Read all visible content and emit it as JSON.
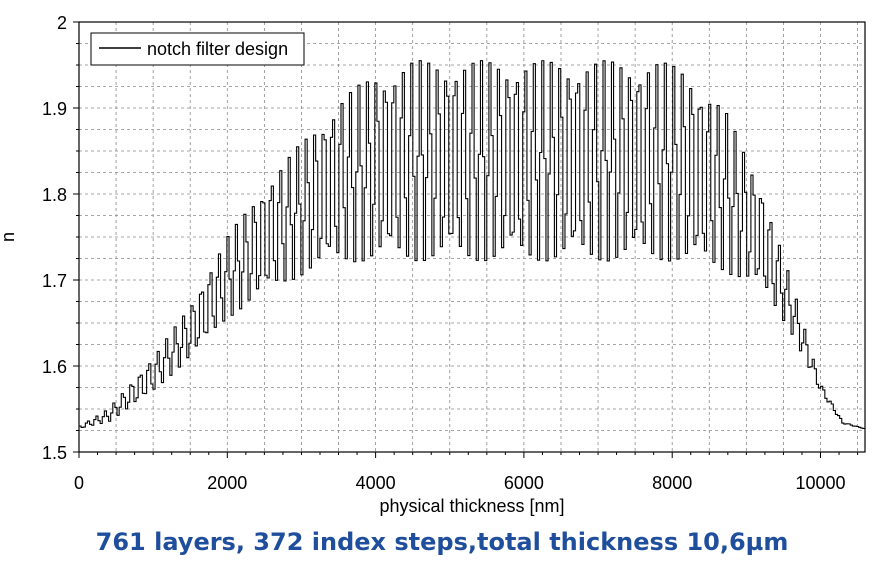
{
  "caption": "761 layers, 372 index steps,total thickness 10,6µm",
  "colors": {
    "line": "#000000",
    "grid": "#8a8a8a",
    "caption": "#1f4e9c"
  },
  "chart_data": {
    "type": "line",
    "title": "",
    "xlabel": "physical thickness [nm]",
    "ylabel": "n",
    "xlim": [
      0,
      10600
    ],
    "ylim": [
      1.5,
      2.0
    ],
    "xticks": [
      0,
      2000,
      4000,
      6000,
      8000,
      10000
    ],
    "xtick_labels": [
      "0",
      "2000",
      "4000",
      "6000",
      "8000",
      "10000"
    ],
    "yticks": [
      1.5,
      1.6,
      1.7,
      1.8,
      1.9,
      2.0
    ],
    "ytick_labels": [
      "1.5",
      "1.6",
      "1.7",
      "1.8",
      "1.9",
      "2"
    ],
    "grid": true,
    "legend": {
      "position": "top-left",
      "entries": [
        "notch filter design"
      ]
    },
    "series": [
      {
        "name": "notch filter design",
        "description_profile": {
          "baseline_n": 1.527,
          "envelope_max": [
            [
              0,
              1.53
            ],
            [
              400,
              1.55
            ],
            [
              1000,
              1.61
            ],
            [
              1500,
              1.67
            ],
            [
              2000,
              1.75
            ],
            [
              2500,
              1.81
            ],
            [
              3000,
              1.86
            ],
            [
              3500,
              1.91
            ],
            [
              4000,
              1.94
            ],
            [
              4500,
              1.955
            ],
            [
              6000,
              1.955
            ],
            [
              7800,
              1.955
            ],
            [
              8200,
              1.945
            ],
            [
              8700,
              1.9
            ],
            [
              9200,
              1.81
            ],
            [
              9600,
              1.7
            ],
            [
              10000,
              1.58
            ],
            [
              10300,
              1.535
            ],
            [
              10600,
              1.527
            ]
          ],
          "envelope_min": [
            [
              0,
              1.527
            ],
            [
              400,
              1.535
            ],
            [
              1000,
              1.57
            ],
            [
              1500,
              1.61
            ],
            [
              2000,
              1.655
            ],
            [
              2500,
              1.685
            ],
            [
              3000,
              1.705
            ],
            [
              3500,
              1.72
            ],
            [
              4000,
              1.722
            ],
            [
              6000,
              1.722
            ],
            [
              8000,
              1.722
            ],
            [
              8700,
              1.71
            ],
            [
              9200,
              1.69
            ],
            [
              9600,
              1.64
            ],
            [
              10000,
              1.57
            ],
            [
              10300,
              1.533
            ],
            [
              10600,
              1.527
            ]
          ],
          "index_steps": 372,
          "layers": 761,
          "total_thickness_nm": 10600,
          "period_nm": 118
        }
      }
    ]
  }
}
